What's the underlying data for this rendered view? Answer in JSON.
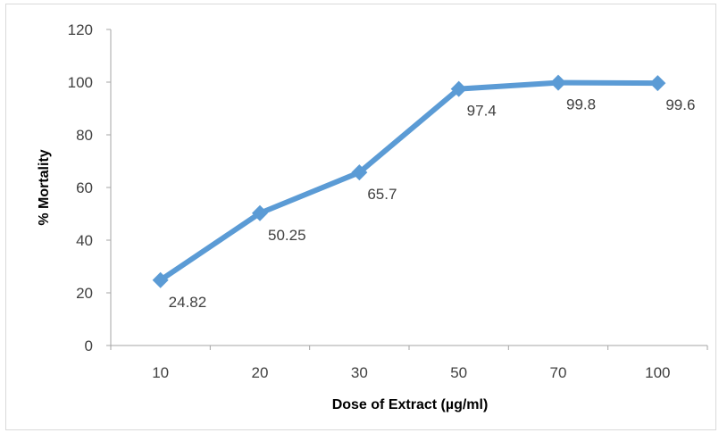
{
  "chart_data": {
    "type": "line",
    "categories": [
      "10",
      "20",
      "30",
      "50",
      "70",
      "100"
    ],
    "series": [
      {
        "values": [
          24.82,
          50.25,
          65.7,
          97.4,
          99.8,
          99.6
        ],
        "data_labels": [
          "24.82",
          "50.25",
          "65.7",
          "97.4",
          "99.8",
          "99.6"
        ]
      }
    ],
    "title": "",
    "xlabel": "Dose of Extract (µg/ml)",
    "ylabel": "% Mortality",
    "ylim": [
      0,
      120
    ],
    "yticks": [
      "0",
      "20",
      "40",
      "60",
      "80",
      "100",
      "120"
    ],
    "grid": false,
    "legend": "none",
    "colors": {
      "line": "#5b9bd5",
      "axis": "#a6a6a6",
      "text": "#404040"
    }
  }
}
